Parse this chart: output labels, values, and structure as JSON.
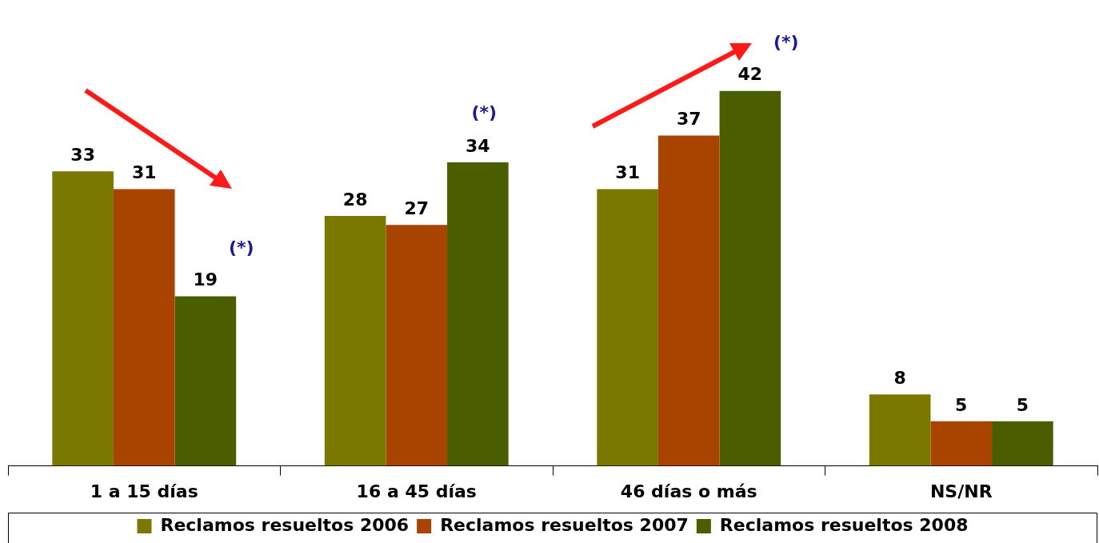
{
  "chart_data": {
    "type": "bar",
    "categories": [
      "1 a 15 días",
      "16 a 45 días",
      "46 días o más",
      "NS/NR"
    ],
    "series": [
      {
        "name": "Reclamos resueltos 2006",
        "color": "#7a7800",
        "values": [
          33,
          28,
          31,
          8
        ]
      },
      {
        "name": "Reclamos resueltos 2007",
        "color": "#a84300",
        "values": [
          31,
          27,
          37,
          5
        ]
      },
      {
        "name": "Reclamos resueltos 2008",
        "color": "#4a5e00",
        "values": [
          19,
          34,
          42,
          5
        ]
      }
    ],
    "data_labels": true,
    "legend": "bottom",
    "grid": false,
    "annotations": [
      "(*)",
      "(*)",
      "(*)"
    ]
  }
}
